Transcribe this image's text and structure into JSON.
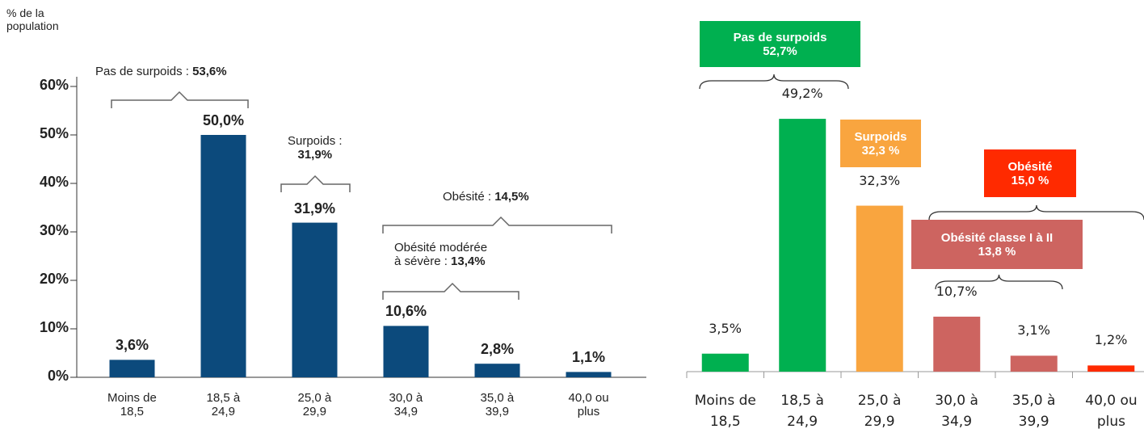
{
  "chart_data": [
    {
      "type": "bar",
      "ylabel": "% de la\npopulation",
      "categories": [
        "Moins de\n18,5",
        "18,5 à\n24,9",
        "25,0 à\n29,9",
        "30,0 à\n34,9",
        "35,0 à\n39,9",
        "40,0 ou\nplus"
      ],
      "values": [
        3.6,
        50.0,
        31.9,
        10.6,
        2.8,
        1.1
      ],
      "value_labels": [
        "3,6%",
        "50,0%",
        "31,9%",
        "10,6%",
        "2,8%",
        "1,1%"
      ],
      "color": "#0c4a7c",
      "ylim": [
        0,
        60
      ],
      "yticks": [
        {
          "value": 0,
          "label": "0%"
        },
        {
          "value": 10,
          "label": "10%"
        },
        {
          "value": 20,
          "label": "20%"
        },
        {
          "value": 30,
          "label": "30%"
        },
        {
          "value": 40,
          "label": "40%"
        },
        {
          "value": 50,
          "label": "50%"
        },
        {
          "value": 60,
          "label": "60%"
        }
      ],
      "annotations": [
        {
          "label": "Pas de surpoids :",
          "value": "53,6%"
        },
        {
          "label": "Surpoids :",
          "value": "31,9%"
        },
        {
          "label": "Obésité :",
          "value": "14,5%"
        },
        {
          "label": "Obésité modérée\nà sévère :",
          "value": "13,4%"
        }
      ]
    },
    {
      "type": "bar",
      "categories": [
        "Moins de\n18,5",
        "18,5 à\n24,9",
        "25,0 à\n29,9",
        "30,0 à\n34,9",
        "35,0 à\n39,9",
        "40,0 ou\nplus"
      ],
      "values": [
        3.5,
        49.2,
        32.3,
        10.7,
        3.1,
        1.2
      ],
      "value_labels": [
        "3,5%",
        "49,2%",
        "32,3%",
        "10,7%",
        "3,1%",
        "1,2%"
      ],
      "colors": [
        "#00b050",
        "#00b050",
        "#f9a53f",
        "#cd6460",
        "#cd6460",
        "#ff2a00"
      ],
      "annotations": [
        {
          "label": "Pas de surpoids",
          "value": "52,7%",
          "color": "#00b050"
        },
        {
          "label": "Surpoids",
          "value": "32,3 %",
          "color": "#f9a53f"
        },
        {
          "label": "Obésité",
          "value": "15,0 %",
          "color": "#ff2a00"
        },
        {
          "label": "Obésité classe I à II",
          "value": "13,8 %",
          "color": "#cd6460"
        }
      ]
    }
  ]
}
